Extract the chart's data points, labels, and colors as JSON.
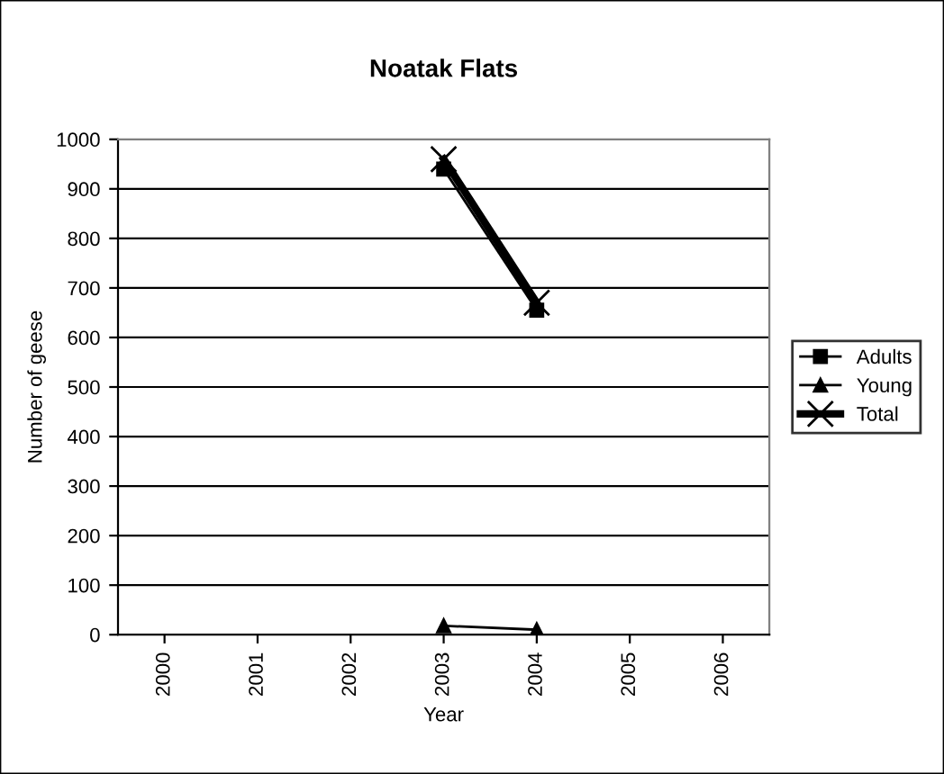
{
  "chart_data": {
    "type": "line",
    "title": "Noatak Flats",
    "xlabel": "Year",
    "ylabel": "Number of geese",
    "categories": [
      "2000",
      "2001",
      "2002",
      "2003",
      "2004",
      "2005",
      "2006"
    ],
    "series": [
      {
        "name": "Adults",
        "color": "#000000",
        "marker": "square",
        "values": [
          null,
          null,
          null,
          940,
          655,
          null,
          null
        ]
      },
      {
        "name": "Young",
        "color": "#000000",
        "marker": "triangle",
        "values": [
          null,
          null,
          null,
          18,
          10,
          null,
          null
        ]
      },
      {
        "name": "Total",
        "color": "#000000",
        "marker": "cross",
        "values": [
          null,
          null,
          null,
          960,
          670,
          null,
          null
        ]
      }
    ],
    "ylim": [
      0,
      1000
    ],
    "yticks": [
      0,
      100,
      200,
      300,
      400,
      500,
      600,
      700,
      800,
      900,
      1000
    ],
    "grid": "y",
    "legend": "right",
    "line_style": "solid"
  }
}
